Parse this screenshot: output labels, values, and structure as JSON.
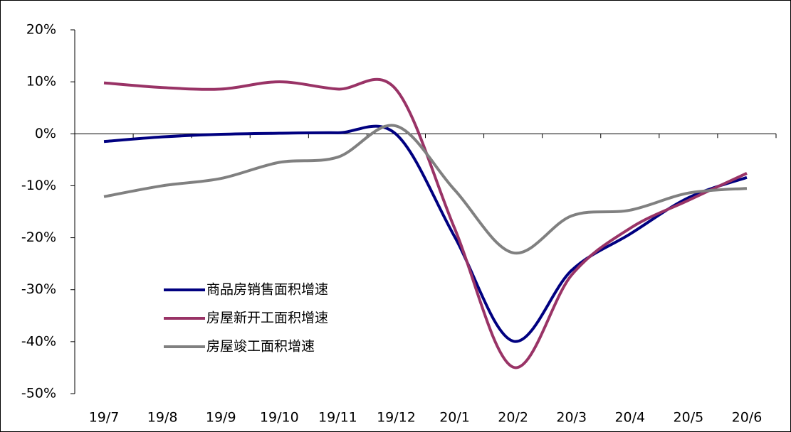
{
  "chart_data": {
    "type": "line",
    "categories": [
      "19/7",
      "19/8",
      "19/9",
      "19/10",
      "19/11",
      "19/12",
      "20/1",
      "20/2",
      "20/3",
      "20/4",
      "20/5",
      "20/6"
    ],
    "series": [
      {
        "name": "商品房销售面积增速",
        "color": "#000080",
        "values": [
          -1.5,
          -0.6,
          -0.1,
          0.1,
          0.2,
          -0.1,
          -19.8,
          -39.9,
          -26.3,
          -19.3,
          -12.3,
          -8.4
        ]
      },
      {
        "name": "房屋新开工面积增速",
        "color": "#993366",
        "values": [
          9.8,
          8.9,
          8.6,
          10.0,
          8.6,
          8.5,
          -18.2,
          -44.9,
          -27.2,
          -18.2,
          -12.8,
          -7.6
        ]
      },
      {
        "name": "房屋竣工面积增速",
        "color": "#808080",
        "values": [
          -12.1,
          -10.0,
          -8.6,
          -5.5,
          -4.5,
          1.5,
          -10.8,
          -22.9,
          -15.8,
          -14.7,
          -11.4,
          -10.5
        ]
      }
    ],
    "ylim": [
      -50,
      20
    ],
    "yticks": [
      {
        "value": -50,
        "label": "-50%"
      },
      {
        "value": -40,
        "label": "-40%"
      },
      {
        "value": -30,
        "label": "-30%"
      },
      {
        "value": -20,
        "label": "-20%"
      },
      {
        "value": -10,
        "label": "-10%"
      },
      {
        "value": 0,
        "label": "0%"
      },
      {
        "value": 10,
        "label": "10%"
      },
      {
        "value": 20,
        "label": "20%"
      }
    ],
    "legend": "lower-left"
  }
}
